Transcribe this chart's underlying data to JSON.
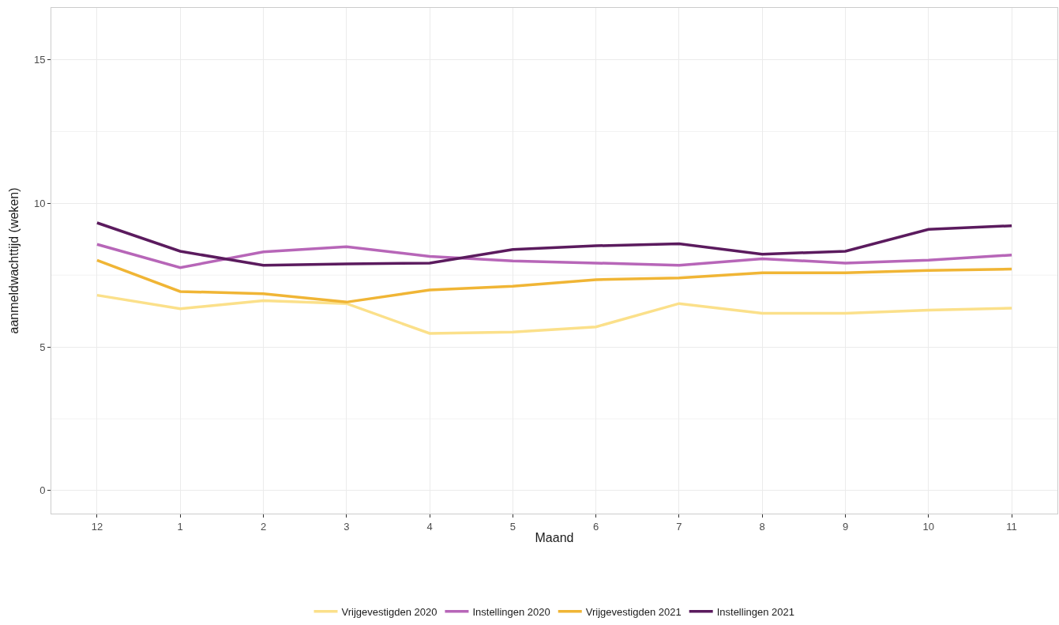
{
  "chart_data": {
    "type": "line",
    "xlabel": "Maand",
    "ylabel": "aanmeldwachttijd (weken)",
    "categories": [
      "12",
      "1",
      "2",
      "3",
      "4",
      "5",
      "6",
      "7",
      "8",
      "9",
      "10",
      "11"
    ],
    "series": [
      {
        "name": "Vrijgevestigden 2020",
        "color": "#fbe08a",
        "values": [
          6.8,
          6.33,
          6.61,
          6.51,
          5.47,
          5.52,
          5.7,
          6.51,
          6.17,
          6.17,
          6.28,
          6.35
        ]
      },
      {
        "name": "Instellingen 2020",
        "color": "#b766b8",
        "values": [
          8.57,
          7.76,
          8.31,
          8.49,
          8.15,
          7.99,
          7.92,
          7.84,
          8.07,
          7.92,
          8.02,
          8.2
        ]
      },
      {
        "name": "Vrijgevestigden 2021",
        "color": "#f0b535",
        "values": [
          8.02,
          6.93,
          6.85,
          6.56,
          6.98,
          7.11,
          7.34,
          7.4,
          7.58,
          7.58,
          7.66,
          7.71
        ]
      },
      {
        "name": "Instellingen 2021",
        "color": "#5b1b5e",
        "values": [
          9.32,
          8.33,
          7.84,
          7.89,
          7.92,
          8.39,
          8.52,
          8.59,
          8.23,
          8.33,
          9.09,
          9.22
        ]
      }
    ],
    "ylim": [
      -0.8,
      16.8
    ],
    "yticks": [
      0,
      {
        "value": 2.5,
        "label": null
      },
      5,
      {
        "value": 7.5,
        "label": null
      },
      10,
      {
        "value": 12.5,
        "label": null
      },
      15
    ],
    "grid": true,
    "legend": "bottom",
    "marker": "none",
    "line_style": "solid"
  }
}
